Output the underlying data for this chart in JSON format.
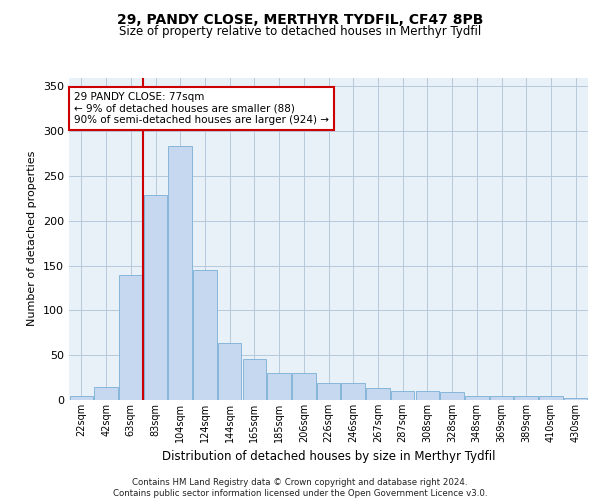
{
  "title1": "29, PANDY CLOSE, MERTHYR TYDFIL, CF47 8PB",
  "title2": "Size of property relative to detached houses in Merthyr Tydfil",
  "xlabel": "Distribution of detached houses by size in Merthyr Tydfil",
  "ylabel": "Number of detached properties",
  "categories": [
    "22sqm",
    "42sqm",
    "63sqm",
    "83sqm",
    "104sqm",
    "124sqm",
    "144sqm",
    "165sqm",
    "185sqm",
    "206sqm",
    "226sqm",
    "246sqm",
    "267sqm",
    "287sqm",
    "308sqm",
    "328sqm",
    "348sqm",
    "369sqm",
    "389sqm",
    "410sqm",
    "430sqm"
  ],
  "values": [
    5,
    14,
    139,
    229,
    283,
    145,
    64,
    46,
    30,
    30,
    19,
    19,
    13,
    10,
    10,
    9,
    5,
    4,
    4,
    5,
    2
  ],
  "bar_color": "#c5d8f0",
  "bar_edge_color": "#7bafd4",
  "vline_x_index": 2.5,
  "vline_color": "#cc0000",
  "annotation_text": "29 PANDY CLOSE: 77sqm\n← 9% of detached houses are smaller (88)\n90% of semi-detached houses are larger (924) →",
  "annotation_box_color": "white",
  "annotation_box_edge": "#cc0000",
  "ylim": [
    0,
    360
  ],
  "yticks": [
    0,
    50,
    100,
    150,
    200,
    250,
    300,
    350
  ],
  "footer": "Contains HM Land Registry data © Crown copyright and database right 2024.\nContains public sector information licensed under the Open Government Licence v3.0.",
  "bg_color": "#e8f0f8",
  "grid_color": "#b8c8dc"
}
